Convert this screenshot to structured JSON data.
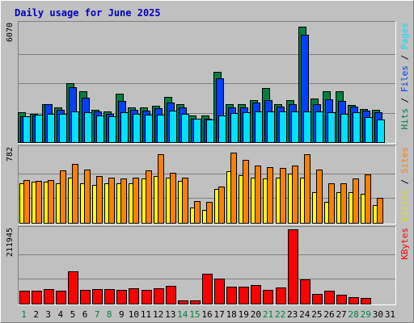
{
  "chart_data": {
    "type": "bar",
    "title": "Daily usage for June 2025",
    "categories": [
      "1",
      "2",
      "3",
      "4",
      "5",
      "6",
      "7",
      "8",
      "9",
      "10",
      "11",
      "12",
      "13",
      "14",
      "15",
      "16",
      "17",
      "18",
      "19",
      "20",
      "21",
      "22",
      "23",
      "24",
      "25",
      "26",
      "27",
      "28",
      "29",
      "30",
      "31"
    ],
    "weekend_days": [
      1,
      7,
      8,
      14,
      15,
      21,
      22,
      28,
      29
    ],
    "panels": [
      {
        "id": "requests",
        "ymax_label": "6070",
        "ymax": 6070,
        "right_labels": [
          {
            "text": "Hits",
            "color": "#008040"
          },
          {
            "text": "Files",
            "color": "#0040ff"
          },
          {
            "text": "Pages",
            "color": "#00e0ff"
          }
        ],
        "series": [
          {
            "name": "Hits",
            "color": "#008040",
            "values": [
              1540,
              1460,
              1960,
              1790,
              3020,
              2630,
              1680,
              1570,
              2490,
              1780,
              1770,
              1880,
              2320,
              1960,
              1380,
              1360,
              3600,
              1950,
              1970,
              2180,
              2770,
              1970,
              2160,
              5960,
              2240,
              2620,
              2600,
              1900,
              1700,
              1670,
              0
            ]
          },
          {
            "name": "Files",
            "color": "#0040ff",
            "values": [
              1320,
              1360,
              1940,
              1660,
              2830,
              2290,
              1570,
              1440,
              2110,
              1660,
              1630,
              1750,
              2050,
              1790,
              1220,
              1210,
              3290,
              1800,
              1800,
              2030,
              2160,
              1830,
              1940,
              5520,
              1940,
              2200,
              2140,
              1820,
              1640,
              1520,
              0
            ]
          },
          {
            "name": "Pages",
            "color": "#00e0ff",
            "values": [
              1330,
              1420,
              1450,
              1440,
              1580,
              1540,
              1390,
              1340,
              1520,
              1440,
              1430,
              1420,
              1640,
              1450,
              1190,
              1170,
              1390,
              1500,
              1520,
              1590,
              1570,
              1590,
              1600,
              1570,
              1570,
              1540,
              1470,
              1540,
              1290,
              1170,
              0
            ]
          }
        ]
      },
      {
        "id": "visits",
        "ymax_label": "782",
        "ymax": 782,
        "right_labels": [
          {
            "text": "Visits",
            "color": "#e0e000"
          },
          {
            "text": "Sites",
            "color": "#ff8000"
          }
        ],
        "series": [
          {
            "name": "Visits",
            "color": "#ffff00",
            "values": [
              420,
              430,
              430,
              420,
              480,
              420,
              400,
              420,
              420,
              420,
              470,
              490,
              480,
              440,
              160,
              140,
              360,
              540,
              500,
              480,
              470,
              480,
              520,
              480,
              320,
              220,
              320,
              320,
              310,
              190,
              0
            ]
          },
          {
            "name": "Sites",
            "color": "#ff8000",
            "values": [
              450,
              440,
              450,
              550,
              620,
              560,
              490,
              480,
              470,
              480,
              550,
              720,
              530,
              480,
              230,
              220,
              380,
              740,
              660,
              600,
              590,
              580,
              600,
              720,
              560,
              420,
              420,
              470,
              510,
              260,
              0
            ]
          }
        ]
      },
      {
        "id": "kbytes",
        "ymax_label": "211945",
        "ymax": 211945,
        "right_labels": [
          {
            "text": "KBytes",
            "color": "#ff0000"
          }
        ],
        "series": [
          {
            "name": "KBytes",
            "color": "#ff0000",
            "values": [
              38000,
              38000,
              42000,
              37000,
              92000,
              40000,
              41000,
              42000,
              40000,
              43000,
              40000,
              43000,
              51000,
              10000,
              10000,
              85000,
              71000,
              48000,
              48000,
              52000,
              40000,
              46000,
              211945,
              69000,
              28000,
              37000,
              26000,
              18000,
              17000,
              0,
              0
            ]
          }
        ]
      }
    ]
  }
}
